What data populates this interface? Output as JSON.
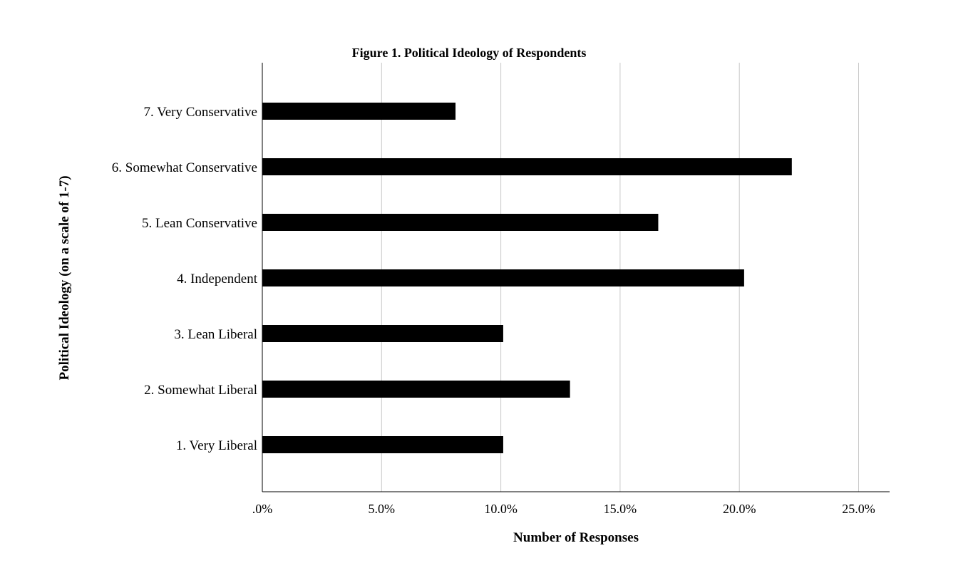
{
  "chart_data": {
    "type": "bar",
    "orientation": "horizontal",
    "title": "Figure 1. Political Ideology of Respondents",
    "xlabel": "Number of Responses",
    "ylabel": "Political Ideology (on a scale of 1-7)",
    "categories": [
      "7. Very Conservative",
      "6. Somewhat Conservative",
      "5. Lean Conservative",
      "4. Independent",
      "3. Lean Liberal",
      "2. Somewhat Liberal",
      "1. Very Liberal"
    ],
    "values": [
      8.1,
      22.2,
      16.6,
      20.2,
      10.1,
      12.9,
      10.1
    ],
    "unit": "%",
    "xlim": [
      0,
      26.3
    ],
    "xticks": [
      0,
      5,
      10,
      15,
      20,
      25
    ],
    "xtick_labels": [
      ".0%",
      "5.0%",
      "10.0%",
      "15.0%",
      "20.0%",
      "25.0%"
    ],
    "grid": "vertical",
    "legend": "none",
    "bar_color": "#000000",
    "grid_color": "#c8c8c8"
  }
}
